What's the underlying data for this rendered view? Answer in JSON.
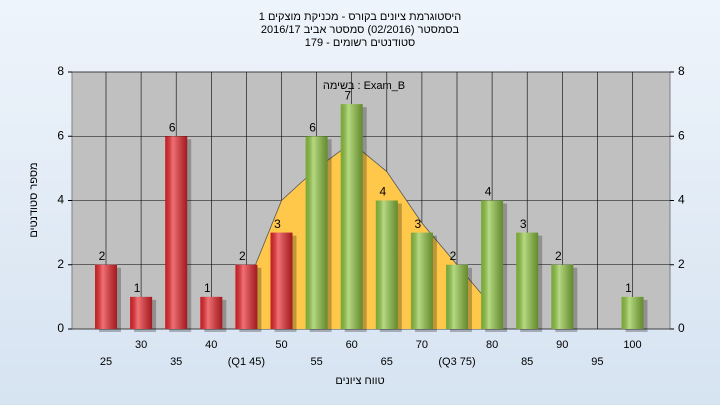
{
  "chart_data": {
    "type": "bar",
    "title": "היסטוגרמת ציונים בקורס - מכניקת מוצקים 1",
    "subtitle": "בסמסטר  (02/2016)  סמסטר אביב 2016/17",
    "subtitle2": "סטודנטים רשומים - 179",
    "annotation": "בשימה : Exam_B",
    "y_label": "מספר סטודנטים",
    "x_label": "טווח ציונים",
    "categories": [
      "25",
      "30",
      "35",
      "40",
      "(Q1 45)",
      "50",
      "55",
      "60",
      "65",
      "70",
      "(Q3 75)",
      "80",
      "85",
      "90",
      "95",
      "100"
    ],
    "values": [
      2,
      1,
      6,
      1,
      2,
      3,
      6,
      7,
      4,
      3,
      2,
      4,
      3,
      2,
      null,
      1
    ],
    "colors": [
      "#e8252b",
      "#e8252b",
      "#e8252b",
      "#e8252b",
      "#e8252b",
      "#e8252b",
      "#8fc640",
      "#8fc640",
      "#8fc640",
      "#8fc640",
      "#8fc640",
      "#8fc640",
      "#8fc640",
      "#8fc640",
      "#8fc640",
      "#8fc640"
    ],
    "curve": {
      "color": "#ffc84a",
      "values": [
        null,
        null,
        null,
        null,
        1.3,
        4.0,
        5.0,
        5.8,
        4.9,
        3.3,
        2.0,
        0.7,
        null,
        null,
        null,
        null
      ]
    },
    "ylim": [
      0,
      8
    ],
    "yticks": [
      0,
      2,
      4,
      6,
      8
    ],
    "grid": true
  }
}
